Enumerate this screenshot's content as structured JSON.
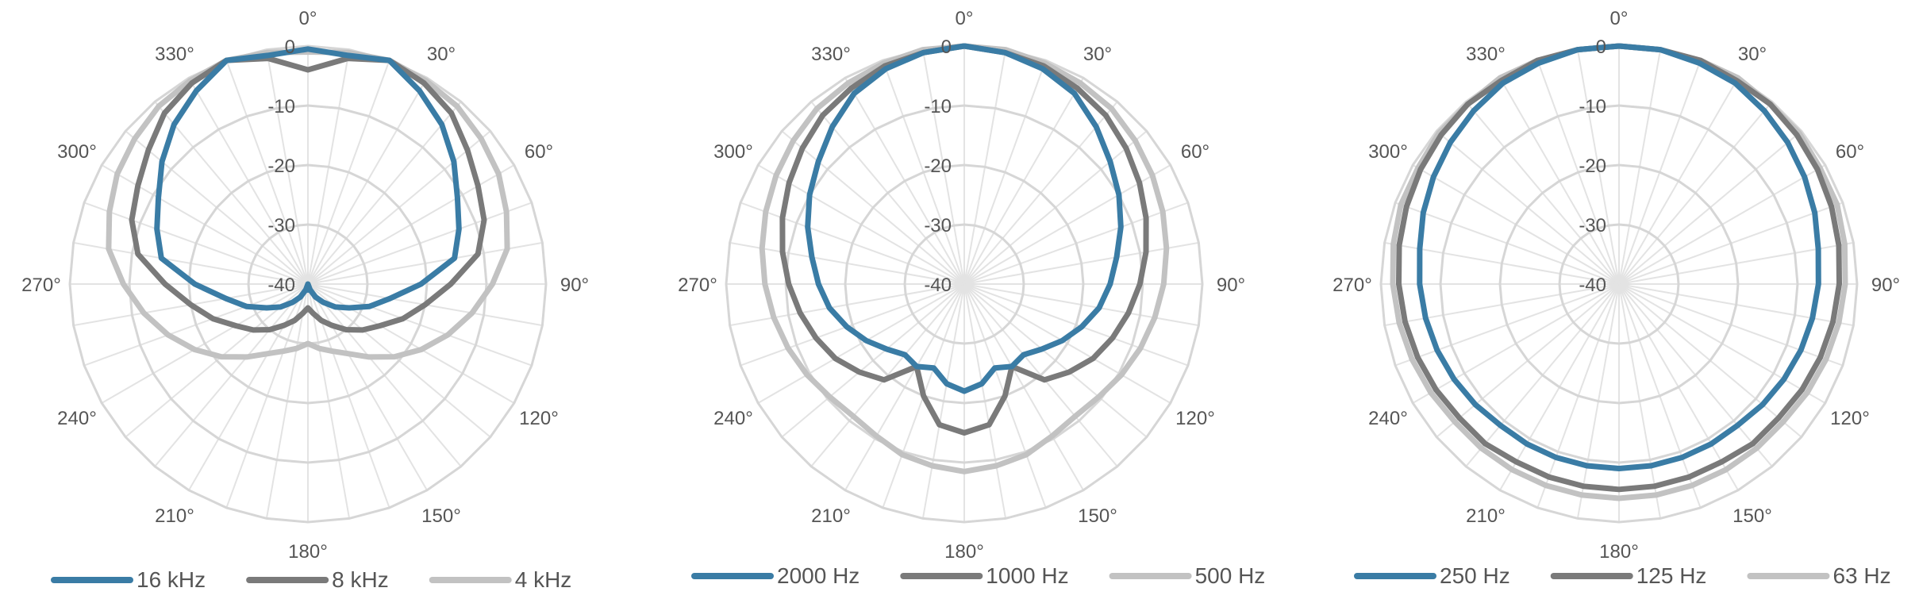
{
  "chart_data": [
    {
      "type": "polar",
      "title": "",
      "radial_axis": {
        "ticks": [
          0,
          -10,
          -20,
          -30,
          -40
        ],
        "range": [
          -40,
          0
        ]
      },
      "angle_labels": [
        "0°",
        "30°",
        "60°",
        "90°",
        "120°",
        "150°",
        "180°",
        "210°",
        "240°",
        "270°",
        "300°",
        "330°"
      ],
      "legend_placement": "bottom",
      "theta": [
        0,
        10,
        20,
        30,
        40,
        50,
        60,
        70,
        80,
        90,
        100,
        110,
        120,
        130,
        140,
        150,
        160,
        170,
        180,
        190,
        200,
        210,
        220,
        230,
        240,
        250,
        260,
        270,
        280,
        290,
        300,
        310,
        320,
        330,
        340,
        350
      ],
      "series": [
        {
          "name": "16 kHz",
          "color": "#3a7ca5",
          "width": 7,
          "values": [
            -0.5,
            -1,
            0,
            -2.5,
            -5,
            -8,
            -11,
            -13,
            -15,
            -21,
            -26,
            -29,
            -32,
            -34,
            -36,
            -37.5,
            -39,
            -40,
            -39,
            -40,
            -39,
            -37.5,
            -36,
            -34,
            -32,
            -29,
            -26,
            -21,
            -15,
            -13,
            -11,
            -8,
            -5,
            -2.5,
            0,
            -1
          ]
        },
        {
          "name": "8 kHz",
          "color": "#7a7a7a",
          "width": 7,
          "values": [
            -4,
            -1.5,
            0,
            -1,
            -2.5,
            -5,
            -7,
            -8.5,
            -11,
            -16,
            -20,
            -23,
            -26,
            -28,
            -30,
            -32,
            -33.5,
            -35,
            -36,
            -35,
            -33.5,
            -32,
            -30,
            -28,
            -26,
            -23,
            -20,
            -16,
            -11,
            -8.5,
            -7,
            -5,
            -2.5,
            -1,
            0,
            -1.5
          ]
        },
        {
          "name": "4 kHz",
          "color": "#c2c2c2",
          "width": 7,
          "values": [
            -1,
            -0.5,
            0,
            -0.5,
            -1,
            -2,
            -3,
            -4.5,
            -6,
            -9,
            -12,
            -15,
            -18,
            -21,
            -24,
            -26.5,
            -28,
            -29,
            -30,
            -29,
            -28,
            -26.5,
            -24,
            -21,
            -18,
            -15,
            -12,
            -9,
            -6,
            -4.5,
            -3,
            -2,
            -1,
            -0.5,
            0,
            -0.5
          ]
        }
      ]
    },
    {
      "type": "polar",
      "title": "",
      "radial_axis": {
        "ticks": [
          0,
          -10,
          -20,
          -30,
          -40
        ],
        "range": [
          -40,
          0
        ]
      },
      "angle_labels": [
        "0°",
        "30°",
        "60°",
        "90°",
        "120°",
        "150°",
        "180°",
        "210°",
        "240°",
        "270°",
        "300°",
        "330°"
      ],
      "legend_placement": "bottom",
      "theta": [
        0,
        10,
        20,
        30,
        40,
        50,
        60,
        70,
        80,
        90,
        100,
        110,
        120,
        130,
        140,
        150,
        160,
        170,
        180,
        190,
        200,
        210,
        220,
        230,
        240,
        250,
        260,
        270,
        280,
        290,
        300,
        310,
        320,
        330,
        340,
        350
      ],
      "series": [
        {
          "name": "2000 Hz",
          "color": "#3a7ca5",
          "width": 7,
          "values": [
            0,
            -0.5,
            -1.5,
            -3,
            -5.5,
            -8,
            -10,
            -12,
            -14,
            -15.5,
            -17,
            -19,
            -21,
            -23,
            -24.5,
            -24,
            -25,
            -23,
            -22,
            -23,
            -25,
            -24,
            -24.5,
            -23,
            -21,
            -19,
            -17,
            -15.5,
            -14,
            -12,
            -10,
            -8,
            -5.5,
            -3,
            -1.5,
            -0.5
          ]
        },
        {
          "name": "1000 Hz",
          "color": "#7a7a7a",
          "width": 7,
          "values": [
            0,
            -0.5,
            -1,
            -2,
            -3,
            -4.5,
            -6,
            -7.5,
            -9,
            -10.5,
            -12,
            -13.5,
            -15,
            -17,
            -19,
            -24,
            -20,
            -16,
            -15,
            -16,
            -20,
            -24,
            -19,
            -17,
            -15,
            -13.5,
            -12,
            -10.5,
            -9,
            -7.5,
            -6,
            -4.5,
            -3,
            -2,
            -1,
            -0.5
          ]
        },
        {
          "name": "500 Hz",
          "color": "#c2c2c2",
          "width": 7,
          "values": [
            0,
            0,
            -0.5,
            -1,
            -1.5,
            -2.5,
            -3.5,
            -4.5,
            -5.5,
            -6.5,
            -7.5,
            -8.5,
            -9.5,
            -10.5,
            -11,
            -10.5,
            -9.5,
            -9,
            -8.5,
            -9,
            -9.5,
            -10.5,
            -11,
            -10.5,
            -9.5,
            -8.5,
            -7.5,
            -6.5,
            -5.5,
            -4.5,
            -3.5,
            -2.5,
            -1.5,
            -1,
            -0.5,
            0
          ]
        }
      ]
    },
    {
      "type": "polar",
      "title": "",
      "radial_axis": {
        "ticks": [
          0,
          -10,
          -20,
          -30,
          -40
        ],
        "range": [
          -40,
          0
        ]
      },
      "angle_labels": [
        "0°",
        "30°",
        "60°",
        "90°",
        "120°",
        "150°",
        "180°",
        "210°",
        "240°",
        "270°",
        "300°",
        "330°"
      ],
      "legend_placement": "bottom",
      "theta": [
        0,
        10,
        20,
        30,
        40,
        50,
        60,
        70,
        80,
        90,
        100,
        110,
        120,
        130,
        140,
        150,
        160,
        170,
        180,
        190,
        200,
        210,
        220,
        230,
        240,
        250,
        260,
        270,
        280,
        290,
        300,
        310,
        320,
        330,
        340,
        350
      ],
      "series": [
        {
          "name": "250 Hz",
          "color": "#3a7ca5",
          "width": 7,
          "values": [
            0,
            0,
            -0.5,
            -1,
            -2,
            -3,
            -4,
            -5,
            -6,
            -6.5,
            -7,
            -7.5,
            -8,
            -8.5,
            -9,
            -9,
            -9,
            -9,
            -9,
            -9,
            -9,
            -9,
            -9,
            -8.5,
            -8,
            -7.5,
            -7,
            -6.5,
            -6,
            -5,
            -4,
            -3,
            -2,
            -1,
            -0.5,
            0
          ]
        },
        {
          "name": "125 Hz",
          "color": "#7a7a7a",
          "width": 7,
          "values": [
            0,
            0,
            0,
            -0.5,
            -0.5,
            -1,
            -1.5,
            -2,
            -2.5,
            -3,
            -3.5,
            -4,
            -4.5,
            -5,
            -5,
            -5.5,
            -5.5,
            -5.5,
            -5.5,
            -5.5,
            -5.5,
            -5.5,
            -5,
            -5,
            -4.5,
            -4,
            -3.5,
            -3,
            -2.5,
            -2,
            -1.5,
            -1,
            -0.5,
            -0.5,
            0,
            0
          ]
        },
        {
          "name": "63 Hz",
          "color": "#c2c2c2",
          "width": 7,
          "values": [
            0,
            0,
            0,
            0,
            -0.5,
            -0.5,
            -1,
            -1,
            -1.5,
            -2,
            -2.5,
            -3,
            -3.5,
            -4,
            -4,
            -4,
            -4,
            -4,
            -4,
            -4,
            -4,
            -4,
            -4,
            -4,
            -3.5,
            -3,
            -2.5,
            -2,
            -1.5,
            -1,
            -1,
            -0.5,
            -0.5,
            0,
            0,
            0
          ]
        }
      ]
    }
  ]
}
